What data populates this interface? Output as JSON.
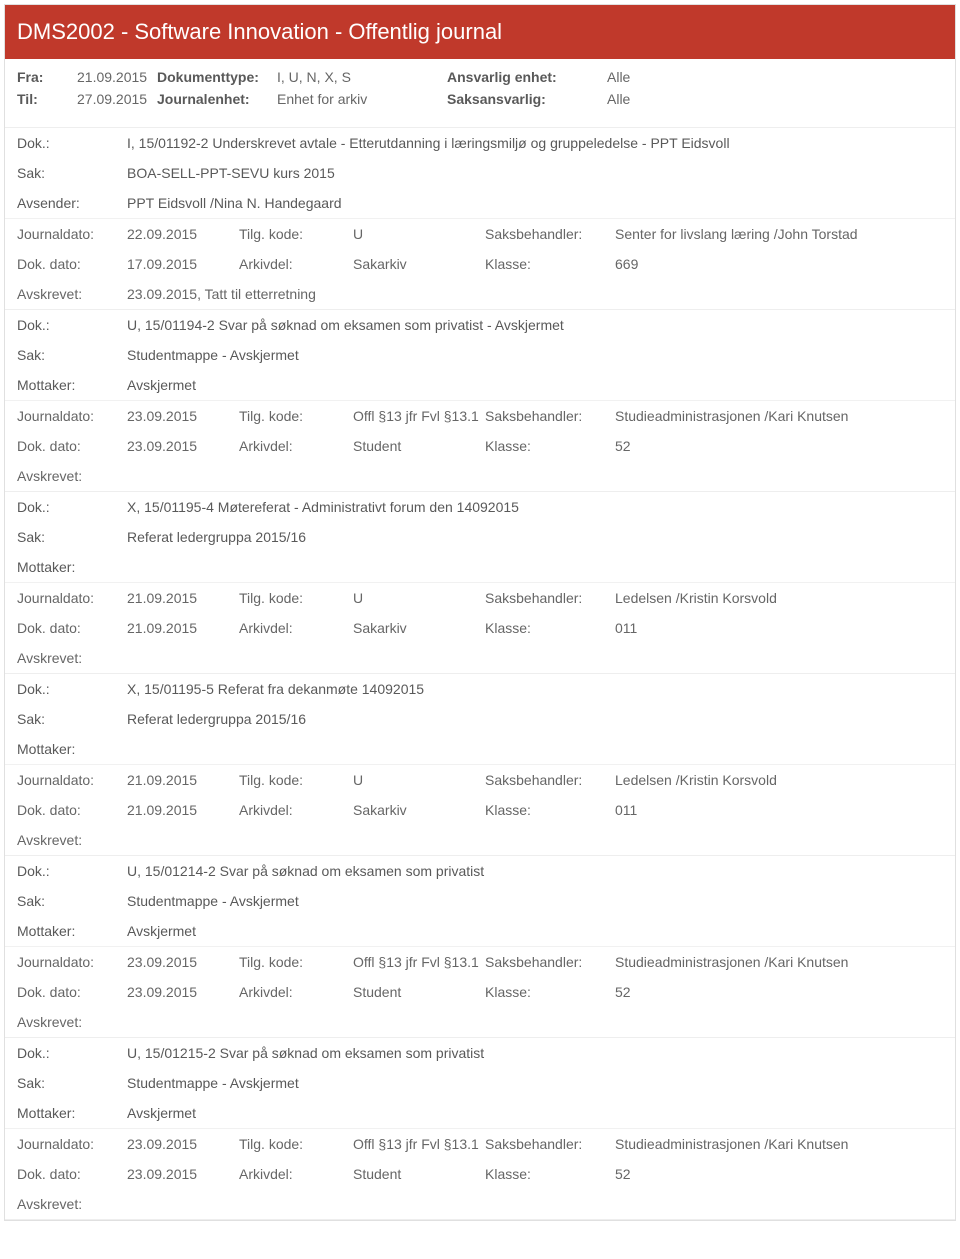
{
  "header": {
    "title": "DMS2002 - Software Innovation - Offentlig journal"
  },
  "filters": {
    "fra_label": "Fra:",
    "fra": "21.09.2015",
    "til_label": "Til:",
    "til": "27.09.2015",
    "dokumenttype_label": "Dokumenttype:",
    "dokumenttype": "I, U, N, X, S",
    "journalenhet_label": "Journalenhet:",
    "journalenhet": "Enhet for arkiv",
    "ansvarlig_label": "Ansvarlig enhet:",
    "ansvarlig": "Alle",
    "saksansvarlig_label": "Saksansvarlig:",
    "saksansvarlig": "Alle"
  },
  "labels": {
    "dok": "Dok.:",
    "sak": "Sak:",
    "avsender": "Avsender:",
    "mottaker": "Mottaker:",
    "journaldato": "Journaldato:",
    "dokdato": "Dok. dato:",
    "avskrevet": "Avskrevet:",
    "tilgkode": "Tilg. kode:",
    "arkivdel": "Arkivdel:",
    "saksbehandler": "Saksbehandler:",
    "klasse": "Klasse:"
  },
  "entries": [
    {
      "dok": "I, 15/01192-2 Underskrevet avtale - Etterutdanning i læringsmiljø og gruppeledelse - PPT Eidsvoll",
      "sak": "BOA-SELL-PPT-SEVU kurs 2015",
      "party_label": "Avsender:",
      "party": "PPT Eidsvoll /Nina N. Handegaard",
      "journaldato": "22.09.2015",
      "tilgkode": "U",
      "saksbehandler": "Senter for livslang læring /John Torstad",
      "dokdato": "17.09.2015",
      "arkivdel": "Sakarkiv",
      "klasse": "669",
      "avskrevet": "23.09.2015, Tatt til etterretning"
    },
    {
      "dok": "U, 15/01194-2 Svar på søknad om eksamen som privatist - Avskjermet",
      "sak": "Studentmappe - Avskjermet",
      "party_label": "Mottaker:",
      "party": "Avskjermet",
      "journaldato": "23.09.2015",
      "tilgkode": "Offl §13 jfr Fvl §13.1",
      "saksbehandler": "Studieadministrasjonen /Kari Knutsen",
      "dokdato": "23.09.2015",
      "arkivdel": "Student",
      "klasse": "52",
      "avskrevet": ""
    },
    {
      "dok": "X, 15/01195-4 Møtereferat - Administrativt forum den 14092015",
      "sak": "Referat ledergruppa 2015/16",
      "party_label": "Mottaker:",
      "party": "",
      "journaldato": "21.09.2015",
      "tilgkode": "U",
      "saksbehandler": "Ledelsen /Kristin Korsvold",
      "dokdato": "21.09.2015",
      "arkivdel": "Sakarkiv",
      "klasse": "011",
      "avskrevet": ""
    },
    {
      "dok": "X, 15/01195-5 Referat fra dekanmøte 14092015",
      "sak": "Referat ledergruppa 2015/16",
      "party_label": "Mottaker:",
      "party": "",
      "journaldato": "21.09.2015",
      "tilgkode": "U",
      "saksbehandler": "Ledelsen /Kristin Korsvold",
      "dokdato": "21.09.2015",
      "arkivdel": "Sakarkiv",
      "klasse": "011",
      "avskrevet": ""
    },
    {
      "dok": "U, 15/01214-2 Svar på søknad om eksamen som privatist",
      "sak": "Studentmappe - Avskjermet",
      "party_label": "Mottaker:",
      "party": "Avskjermet",
      "journaldato": "23.09.2015",
      "tilgkode": "Offl §13 jfr Fvl §13.1",
      "saksbehandler": "Studieadministrasjonen /Kari Knutsen",
      "dokdato": "23.09.2015",
      "arkivdel": "Student",
      "klasse": "52",
      "avskrevet": ""
    },
    {
      "dok": "U, 15/01215-2 Svar på søknad om eksamen som privatist",
      "sak": "Studentmappe - Avskjermet",
      "party_label": "Mottaker:",
      "party": "Avskjermet",
      "journaldato": "23.09.2015",
      "tilgkode": "Offl §13 jfr Fvl §13.1",
      "saksbehandler": "Studieadministrasjonen /Kari Knutsen",
      "dokdato": "23.09.2015",
      "arkivdel": "Student",
      "klasse": "52",
      "avskrevet": ""
    }
  ]
}
